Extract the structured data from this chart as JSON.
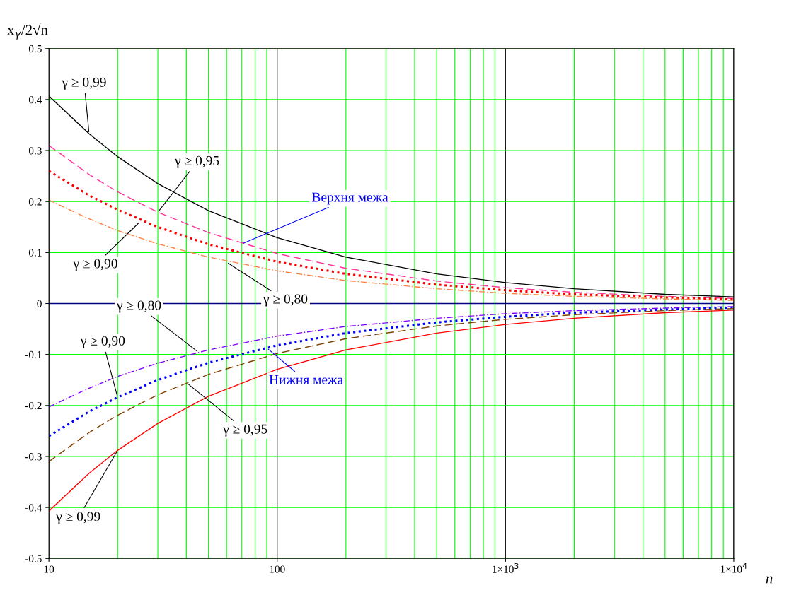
{
  "chart_data": {
    "type": "line",
    "ylabel": "x$_{γ}$/2√n",
    "xlabel": "n",
    "x": [
      10,
      15,
      20,
      30,
      50,
      100,
      200,
      500,
      1000,
      2000,
      5000,
      10000
    ],
    "series": [
      {
        "color": "#000000",
        "line_style": "solid",
        "values": [
          0.407,
          0.333,
          0.288,
          0.235,
          0.182,
          0.129,
          0.091,
          0.058,
          0.041,
          0.029,
          0.018,
          0.013
        ]
      },
      {
        "color": "#ff3399",
        "line_style": "dashed",
        "values": [
          0.31,
          0.253,
          0.219,
          0.179,
          0.139,
          0.098,
          0.069,
          0.044,
          0.031,
          0.022,
          0.014,
          0.01
        ]
      },
      {
        "color": "#ff0000",
        "line_style": "dotted",
        "values": [
          0.26,
          0.212,
          0.184,
          0.15,
          0.116,
          0.082,
          0.058,
          0.037,
          0.026,
          0.018,
          0.012,
          0.008
        ]
      },
      {
        "color": "#ff8040",
        "line_style": "dashdot",
        "values": [
          0.203,
          0.166,
          0.143,
          0.117,
          0.091,
          0.064,
          0.045,
          0.029,
          0.02,
          0.014,
          0.009,
          0.006
        ]
      },
      {
        "color": "#8000ff",
        "line_style": "dashdot",
        "values": [
          -0.203,
          -0.166,
          -0.143,
          -0.117,
          -0.091,
          -0.064,
          -0.045,
          -0.029,
          -0.02,
          -0.014,
          -0.009,
          -0.006
        ]
      },
      {
        "color": "#0000ff",
        "line_style": "dotted",
        "values": [
          -0.26,
          -0.212,
          -0.184,
          -0.15,
          -0.116,
          -0.082,
          -0.058,
          -0.037,
          -0.026,
          -0.018,
          -0.012,
          -0.008
        ]
      },
      {
        "color": "#804000",
        "line_style": "dashed",
        "values": [
          -0.31,
          -0.253,
          -0.219,
          -0.179,
          -0.139,
          -0.098,
          -0.069,
          -0.044,
          -0.031,
          -0.022,
          -0.014,
          -0.01
        ]
      },
      {
        "color": "#ff0000",
        "line_style": "solid",
        "values": [
          -0.407,
          -0.333,
          -0.288,
          -0.235,
          -0.182,
          -0.129,
          -0.091,
          -0.058,
          -0.041,
          -0.029,
          -0.018,
          -0.013
        ]
      }
    ],
    "log": "x",
    "grid": true,
    "marker": "none",
    "xlim": [
      10,
      10000
    ],
    "xticks": [
      10,
      100,
      {
        "value": 1000,
        "label": "1×10$^{3}$"
      },
      {
        "value": 10000,
        "label": "1×10$^{4}$"
      }
    ],
    "ylim": [
      -0.5,
      0.5
    ],
    "yticks": [
      -0.5,
      -0.4,
      -0.3,
      -0.2,
      -0.1,
      0,
      0.1,
      0.2,
      0.3,
      0.4,
      0.5
    ],
    "ref_lines": [
      {
        "axis": "y",
        "value": 0,
        "color": "#000080"
      }
    ],
    "annotations": [
      {
        "text": "γ ≥ 0,99",
        "x": 15,
        "y": 0.333
      },
      {
        "text": "γ ≥ 0,95",
        "x": 30,
        "y": 0.179
      },
      {
        "text": "γ ≥ 0,90",
        "x": 25,
        "y": 0.16
      },
      {
        "text": "γ ≥ 0,80",
        "x": 60,
        "y": 0.081
      },
      {
        "text": "Верхня межа",
        "x": 70,
        "y": 0.117
      },
      {
        "text": "γ ≥ 0,80",
        "x": 45,
        "y": -0.095
      },
      {
        "text": "γ ≥ 0,90",
        "x": 20,
        "y": -0.184
      },
      {
        "text": "γ ≥ 0,95",
        "x": 40,
        "y": -0.155
      },
      {
        "text": "γ ≥ 0,99",
        "x": 20,
        "y": -0.288
      },
      {
        "text": "Нижня межа",
        "x": 90,
        "y": -0.087
      }
    ]
  }
}
